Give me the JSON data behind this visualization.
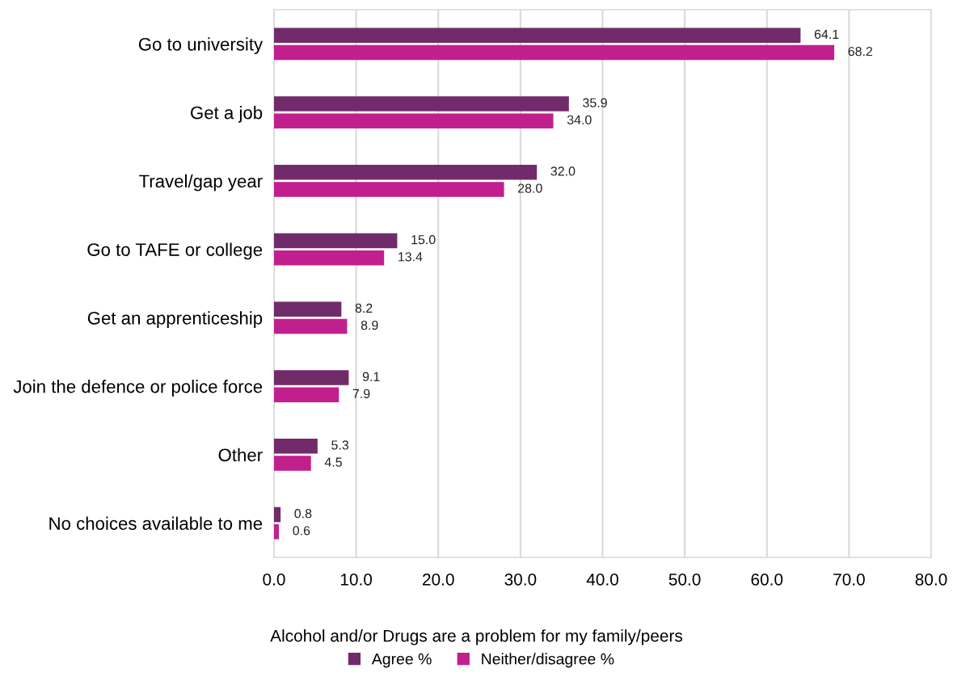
{
  "chart_data": {
    "type": "bar",
    "orientation": "horizontal",
    "categories": [
      "Go to university",
      "Get a job",
      "Travel/gap year",
      "Go to TAFE or college",
      "Get an apprenticeship",
      "Join the defence or police force",
      "Other",
      "No choices available to me"
    ],
    "series": [
      {
        "name": "Agree %",
        "color": "#722b6a",
        "values": [
          64.1,
          35.9,
          32.0,
          15.0,
          8.2,
          9.1,
          5.3,
          0.8
        ],
        "value_labels": [
          "64.1",
          "35.9",
          "32.0",
          "15.0",
          "8.2",
          "9.1",
          "5.3",
          "0.8"
        ]
      },
      {
        "name": "Neither/disagree %",
        "color": "#c21f8e",
        "values": [
          68.2,
          34.0,
          28.0,
          13.4,
          8.9,
          7.9,
          4.5,
          0.6
        ],
        "value_labels": [
          "68.2",
          "34.0",
          "28.0",
          "13.4",
          "8.9",
          "7.9",
          "4.5",
          "0.6"
        ]
      }
    ],
    "xlim": [
      0,
      80
    ],
    "xticks": [
      {
        "value": 0,
        "label": "0.0"
      },
      {
        "value": 10,
        "label": "10.0"
      },
      {
        "value": 20,
        "label": "20.0"
      },
      {
        "value": 30,
        "label": "30.0"
      },
      {
        "value": 40,
        "label": "40.0"
      },
      {
        "value": 50,
        "label": "50.0"
      },
      {
        "value": 60,
        "label": "60.0"
      },
      {
        "value": 70,
        "label": "70.0"
      },
      {
        "value": 80,
        "label": "80.0"
      }
    ],
    "grid": "x",
    "legend": "bottom",
    "legend_title": "Alcohol and/or Drugs are a problem for my family/peers"
  }
}
